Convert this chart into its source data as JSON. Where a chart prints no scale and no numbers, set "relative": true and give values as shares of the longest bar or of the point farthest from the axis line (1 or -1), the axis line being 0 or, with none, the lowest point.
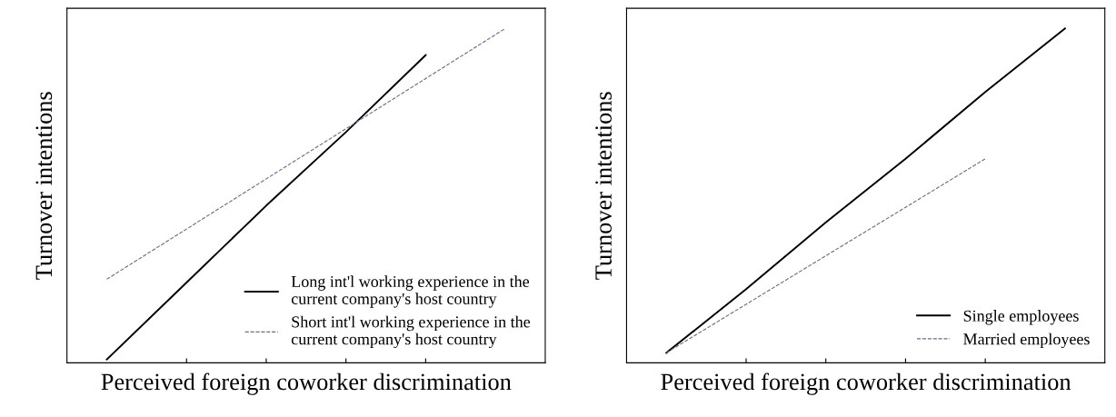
{
  "chart_data": [
    {
      "type": "line",
      "relative": true,
      "xlabel": "Perceived foreign coworker discrimination",
      "ylabel": "Turnover intentions",
      "categories": [
        null,
        null,
        null,
        null,
        null,
        null
      ],
      "tick_labels": false,
      "legend": "bottom right",
      "grid": false,
      "series": [
        {
          "name": "Long int'l working experience in the current company's host country",
          "color": "#000000",
          "line_style": "solid",
          "values": [
            0.01,
            0.24,
            0.47,
            0.69,
            0.92,
            null
          ]
        },
        {
          "name": "Short int'l working experience in the current company's host country",
          "color": "#6a6a8a",
          "line_style": "dashed",
          "values": [
            0.25,
            0.4,
            0.55,
            0.7,
            0.85,
            1.0
          ]
        }
      ]
    },
    {
      "type": "line",
      "relative": true,
      "xlabel": "Perceived foreign coworker discrimination",
      "ylabel": "Turnover intentions",
      "categories": [
        null,
        null,
        null,
        null,
        null,
        null
      ],
      "tick_labels": false,
      "legend": "bottom right",
      "grid": false,
      "series": [
        {
          "name": "Single employees",
          "color": "#000000",
          "line_style": "solid",
          "values": [
            0.03,
            0.22,
            0.42,
            0.61,
            0.81,
            1.0
          ]
        },
        {
          "name": "Married employees",
          "color": "#6a6a8a",
          "line_style": "dashed",
          "values": [
            0.03,
            0.175,
            0.32,
            0.465,
            0.61,
            null
          ]
        }
      ]
    }
  ]
}
